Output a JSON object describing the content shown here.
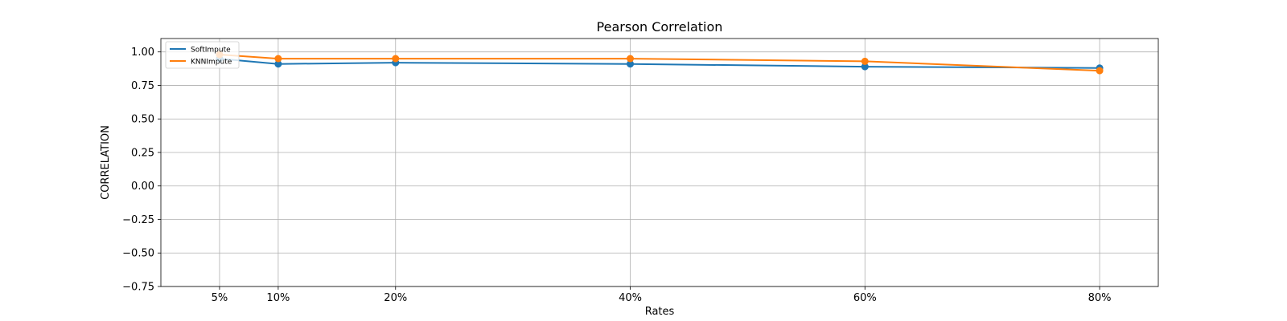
{
  "chart_data": {
    "type": "line",
    "title": "Pearson Correlation",
    "xlabel": "Rates",
    "ylabel": "CORRELATION",
    "x": [
      5,
      10,
      20,
      40,
      60,
      80
    ],
    "x_tick_labels": [
      "5%",
      "10%",
      "20%",
      "40%",
      "60%",
      "80%"
    ],
    "xlim": [
      0,
      85
    ],
    "ylim": [
      -0.75,
      1.1
    ],
    "y_ticks": [
      -0.75,
      -0.5,
      -0.25,
      0.0,
      0.25,
      0.5,
      0.75,
      1.0
    ],
    "y_tick_labels": [
      "−0.75",
      "−0.50",
      "−0.25",
      "0.00",
      "0.25",
      "0.50",
      "0.75",
      "1.00"
    ],
    "grid": true,
    "legend_position": "upper-left",
    "series": [
      {
        "name": "SoftImpute",
        "color": "#1f77b4",
        "values": [
          0.95,
          0.91,
          0.92,
          0.91,
          0.89,
          0.88
        ]
      },
      {
        "name": "KNNImpute",
        "color": "#ff7f0e",
        "values": [
          0.98,
          0.95,
          0.95,
          0.95,
          0.93,
          0.86
        ]
      }
    ]
  }
}
